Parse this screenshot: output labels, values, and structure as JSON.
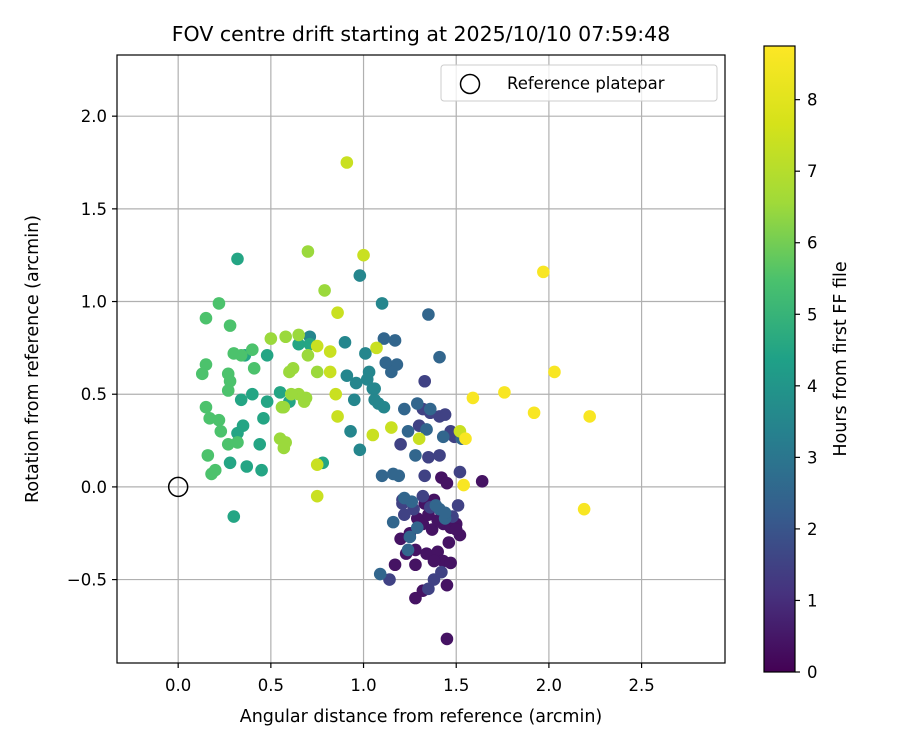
{
  "chart_data": {
    "type": "scatter",
    "title": "FOV centre drift starting at 2025/10/10 07:59:48",
    "xlabel": "Angular distance from reference (arcmin)",
    "ylabel": "Rotation from reference (arcmin)",
    "xlim": [
      -0.33,
      2.95
    ],
    "ylim": [
      -0.95,
      2.33
    ],
    "xticks": [
      0.0,
      0.5,
      1.0,
      1.5,
      2.0,
      2.5
    ],
    "xtick_labels": [
      "0.0",
      "0.5",
      "1.0",
      "1.5",
      "2.0",
      "2.5"
    ],
    "yticks": [
      -0.5,
      0.0,
      0.5,
      1.0,
      1.5,
      2.0
    ],
    "ytick_labels": [
      "−0.5",
      "0.0",
      "0.5",
      "1.0",
      "1.5",
      "2.0"
    ],
    "grid": true,
    "legend": {
      "position": "top-right",
      "label": "Reference platepar"
    },
    "reference": {
      "x": 0.0,
      "y": 0.0
    },
    "colorbar": {
      "label": "Hours from first FF file",
      "colormap": "viridis",
      "range": [
        0,
        8.75
      ],
      "ticks": [
        0,
        1,
        2,
        3,
        4,
        5,
        6,
        7,
        8
      ],
      "tick_labels": [
        "0",
        "1",
        "2",
        "3",
        "4",
        "5",
        "6",
        "7",
        "8"
      ]
    },
    "points_hours_0_1": [
      [
        1.28,
        -0.6
      ],
      [
        1.32,
        -0.56
      ],
      [
        1.45,
        -0.82
      ],
      [
        1.42,
        0.05
      ],
      [
        1.45,
        0.02
      ],
      [
        1.33,
        -0.09
      ],
      [
        1.38,
        -0.07
      ],
      [
        1.2,
        -0.28
      ],
      [
        1.25,
        -0.25
      ],
      [
        1.29,
        -0.17
      ],
      [
        1.32,
        -0.2
      ],
      [
        1.35,
        -0.15
      ],
      [
        1.37,
        -0.23
      ],
      [
        1.4,
        -0.18
      ],
      [
        1.43,
        -0.2
      ],
      [
        1.47,
        -0.22
      ],
      [
        1.5,
        -0.2
      ],
      [
        1.52,
        -0.26
      ],
      [
        1.46,
        -0.3
      ],
      [
        1.5,
        -0.23
      ],
      [
        1.23,
        -0.36
      ],
      [
        1.28,
        -0.34
      ],
      [
        1.34,
        -0.36
      ],
      [
        1.4,
        -0.35
      ],
      [
        1.43,
        -0.4
      ],
      [
        1.47,
        -0.41
      ],
      [
        1.38,
        -0.4
      ],
      [
        1.45,
        -0.53
      ],
      [
        1.28,
        -0.42
      ],
      [
        1.17,
        -0.42
      ],
      [
        1.64,
        0.03
      ]
    ],
    "points_hours_1_2": [
      [
        1.33,
        0.57
      ],
      [
        1.35,
        0.16
      ],
      [
        1.41,
        0.17
      ],
      [
        1.36,
        0.4
      ],
      [
        1.41,
        0.38
      ],
      [
        1.44,
        0.39
      ],
      [
        1.32,
        0.42
      ],
      [
        1.3,
        0.33
      ],
      [
        1.2,
        0.23
      ],
      [
        1.14,
        -0.5
      ],
      [
        1.35,
        -0.55
      ],
      [
        1.38,
        -0.5
      ],
      [
        1.42,
        -0.46
      ],
      [
        1.33,
        0.06
      ],
      [
        1.36,
        -0.11
      ],
      [
        1.32,
        -0.05
      ],
      [
        1.21,
        -0.07
      ],
      [
        1.22,
        -0.15
      ],
      [
        1.27,
        -0.12
      ],
      [
        1.21,
        -0.09
      ],
      [
        1.48,
        -0.16
      ],
      [
        1.51,
        -0.1
      ],
      [
        1.52,
        0.08
      ],
      [
        1.47,
        0.3
      ],
      [
        1.49,
        0.27
      ]
    ],
    "points_hours_2_3": [
      [
        1.24,
        0.3
      ],
      [
        1.29,
        0.45
      ],
      [
        1.43,
        0.27
      ],
      [
        1.28,
        0.17
      ],
      [
        1.24,
        -0.34
      ],
      [
        1.16,
        -0.19
      ],
      [
        1.25,
        -0.27
      ],
      [
        1.29,
        -0.22
      ],
      [
        1.26,
        -0.08
      ],
      [
        1.22,
        -0.06
      ],
      [
        1.41,
        -0.12
      ],
      [
        1.44,
        -0.17
      ],
      [
        1.44,
        -0.14
      ],
      [
        1.39,
        -0.1
      ],
      [
        1.36,
        0.42
      ],
      [
        1.53,
        0.26
      ],
      [
        1.09,
        -0.47
      ],
      [
        1.19,
        0.06
      ],
      [
        1.16,
        0.07
      ],
      [
        1.1,
        0.06
      ],
      [
        1.22,
        0.42
      ],
      [
        1.34,
        0.31
      ],
      [
        1.17,
        0.79
      ],
      [
        1.18,
        0.66
      ],
      [
        1.11,
        0.8
      ],
      [
        1.41,
        0.7
      ],
      [
        1.35,
        0.93
      ],
      [
        1.15,
        0.62
      ],
      [
        1.12,
        0.67
      ]
    ],
    "points_hours_3_4": [
      [
        0.98,
        1.14
      ],
      [
        1.1,
        0.99
      ],
      [
        1.03,
        0.62
      ],
      [
        1.05,
        0.53
      ],
      [
        1.08,
        0.45
      ],
      [
        1.11,
        0.43
      ],
      [
        1.06,
        0.47
      ],
      [
        0.95,
        0.47
      ],
      [
        0.91,
        0.6
      ],
      [
        1.01,
        0.72
      ],
      [
        0.9,
        0.78
      ],
      [
        0.98,
        0.2
      ],
      [
        0.93,
        0.3
      ],
      [
        1.02,
        0.58
      ],
      [
        1.06,
        0.53
      ],
      [
        0.71,
        0.81
      ],
      [
        0.96,
        0.56
      ]
    ],
    "points_hours_4_5": [
      [
        0.32,
        1.23
      ],
      [
        0.3,
        -0.16
      ],
      [
        0.78,
        0.13
      ],
      [
        0.45,
        0.09
      ],
      [
        0.37,
        0.11
      ],
      [
        0.35,
        0.33
      ],
      [
        0.32,
        0.29
      ],
      [
        0.28,
        0.13
      ],
      [
        0.34,
        0.47
      ],
      [
        0.4,
        0.5
      ],
      [
        0.48,
        0.46
      ],
      [
        0.55,
        0.51
      ],
      [
        0.46,
        0.37
      ],
      [
        0.44,
        0.23
      ],
      [
        0.6,
        0.46
      ],
      [
        0.65,
        0.77
      ],
      [
        0.71,
        0.77
      ],
      [
        0.36,
        0.71
      ],
      [
        0.48,
        0.71
      ]
    ],
    "points_hours_5_6": [
      [
        0.22,
        0.99
      ],
      [
        0.15,
        0.91
      ],
      [
        0.28,
        0.87
      ],
      [
        0.15,
        0.66
      ],
      [
        0.13,
        0.61
      ],
      [
        0.27,
        0.61
      ],
      [
        0.28,
        0.57
      ],
      [
        0.3,
        0.72
      ],
      [
        0.34,
        0.71
      ],
      [
        0.27,
        0.52
      ],
      [
        0.15,
        0.43
      ],
      [
        0.22,
        0.36
      ],
      [
        0.17,
        0.37
      ],
      [
        0.23,
        0.3
      ],
      [
        0.32,
        0.24
      ],
      [
        0.27,
        0.23
      ],
      [
        0.16,
        0.17
      ],
      [
        0.18,
        0.07
      ],
      [
        0.2,
        0.09
      ],
      [
        0.4,
        0.74
      ],
      [
        0.41,
        0.64
      ]
    ],
    "points_hours_6_7": [
      [
        0.7,
        1.27
      ],
      [
        0.57,
        0.43
      ],
      [
        0.55,
        0.26
      ],
      [
        0.57,
        0.21
      ],
      [
        0.58,
        0.24
      ],
      [
        0.65,
        0.82
      ],
      [
        0.58,
        0.81
      ],
      [
        0.5,
        0.8
      ],
      [
        0.62,
        0.64
      ],
      [
        0.6,
        0.62
      ],
      [
        0.65,
        0.5
      ],
      [
        0.68,
        0.46
      ],
      [
        0.69,
        0.48
      ],
      [
        0.61,
        0.5
      ],
      [
        0.56,
        0.43
      ],
      [
        0.75,
        0.62
      ],
      [
        0.7,
        0.71
      ],
      [
        0.79,
        1.06
      ]
    ],
    "points_hours_7_8": [
      [
        0.91,
        1.75
      ],
      [
        1.0,
        1.25
      ],
      [
        0.86,
        0.94
      ],
      [
        0.82,
        0.73
      ],
      [
        0.75,
        0.76
      ],
      [
        0.82,
        0.62
      ],
      [
        0.85,
        0.5
      ],
      [
        0.86,
        0.38
      ],
      [
        0.75,
        0.12
      ],
      [
        0.75,
        -0.05
      ],
      [
        1.07,
        0.75
      ],
      [
        1.05,
        0.28
      ],
      [
        1.15,
        0.32
      ],
      [
        1.3,
        0.26
      ],
      [
        1.52,
        0.3
      ]
    ],
    "points_hours_8_9": [
      [
        1.97,
        1.16
      ],
      [
        2.03,
        0.62
      ],
      [
        1.76,
        0.51
      ],
      [
        1.92,
        0.4
      ],
      [
        2.22,
        0.38
      ],
      [
        1.59,
        0.48
      ],
      [
        1.55,
        0.26
      ],
      [
        2.19,
        -0.12
      ],
      [
        1.54,
        0.01
      ]
    ]
  }
}
